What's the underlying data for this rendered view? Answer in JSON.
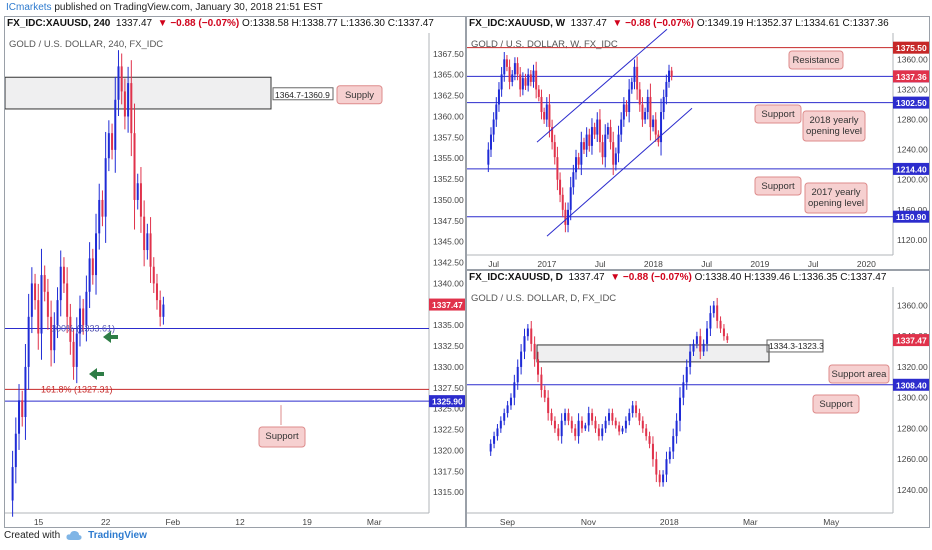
{
  "header": {
    "publisher": "ICmarkets",
    "text": " published on TradingView.com, January 30, 2018 21:51 EST"
  },
  "footer": {
    "created_with": "Created with",
    "brand": "TradingView"
  },
  "colors": {
    "up": "#1f2bd6",
    "down": "#e0324b",
    "blue_line": "#2c2ccd",
    "red_line": "#c62828",
    "callout_bg": "#f6d0d0",
    "callout_border": "#dd8b8b"
  },
  "panels": {
    "h4": {
      "title_symbol": "FX_IDC:XAUUSD, 240",
      "title_change": "▼ −0.88 (−0.07%)",
      "title_ohlc": "O:1338.58 H:1338.77 L:1336.30 C:1337.47",
      "title_price": "1337.47",
      "watermark": "GOLD / U.S. DOLLAR, 240, FX_IDC",
      "supply_box_label": "1364.7-1360.9",
      "supply_label": "Supply",
      "fib_label_1": "161.8% (1327.31)",
      "fib_label_2": "100% (1333.61)",
      "support_label": "Support"
    },
    "weekly": {
      "title_symbol": "FX_IDC:XAUUSD, W",
      "title_change": "▼ −0.88 (−0.07%)",
      "title_ohlc": "O:1349.19 H:1352.37 L:1334.61 C:1337.36",
      "watermark": "GOLD / U.S. DOLLAR, W, FX_IDC",
      "callouts": [
        "Resistance",
        "Support",
        "2018 yearly opening level",
        "Support",
        "2017 yearly opening level"
      ]
    },
    "daily": {
      "title_symbol": "FX_IDC:XAUUSD, D",
      "title_change": "▼ −0.88 (−0.07%)",
      "title_ohlc": "O:1338.40 H:1339.46 L:1336.35 C:1337.47",
      "watermark": "GOLD / U.S. DOLLAR, D, FX_IDC",
      "box_label": "1334.3-1323.3",
      "callouts": [
        "Support area",
        "Support"
      ]
    }
  },
  "chart_data": [
    {
      "type": "candlestick",
      "panel": "h4",
      "ylim": [
        1312.5,
        1370
      ],
      "y_ticks": [
        1315.0,
        1317.5,
        1320.0,
        1322.5,
        1325.0,
        1327.5,
        1330.0,
        1332.5,
        1335.0,
        1337.5,
        1340.0,
        1342.5,
        1345.0,
        1347.5,
        1350.0,
        1352.5,
        1355.0,
        1357.5,
        1360.0,
        1362.5,
        1365.0,
        1367.5
      ],
      "x_ticks": [
        "15",
        "22",
        "Feb",
        "12",
        "19",
        "Mar"
      ],
      "price_tags": [
        {
          "value": 1337.47,
          "label": "1337.47",
          "color": "#e0324b"
        },
        {
          "value": 1325.9,
          "label": "1325.90",
          "color": "#2c2ccd"
        }
      ],
      "levels": [
        {
          "value": 1325.9,
          "color": "#2c2ccd"
        },
        {
          "value": 1327.31,
          "color": "#c62828"
        },
        {
          "value": 1334.6,
          "color": "#2c2ccd"
        }
      ],
      "zone": [
        1360.9,
        1364.7
      ],
      "closes": [
        1318,
        1322,
        1326,
        1324,
        1330,
        1336,
        1340,
        1338,
        1334,
        1341,
        1339,
        1336,
        1332,
        1335,
        1338,
        1342,
        1340,
        1336,
        1333,
        1330,
        1334,
        1337,
        1335,
        1339,
        1343,
        1341,
        1346,
        1350,
        1348,
        1355,
        1358,
        1356,
        1362,
        1366,
        1363,
        1360,
        1364,
        1358,
        1350,
        1352,
        1348,
        1344,
        1346,
        1342,
        1340,
        1338,
        1336,
        1337.47
      ]
    },
    {
      "type": "candlestick",
      "panel": "weekly",
      "ylim": [
        1100,
        1395
      ],
      "y_ticks": [
        1120.0,
        1160.0,
        1200.0,
        1240.0,
        1280.0,
        1320.0,
        1360.0
      ],
      "x_ticks": [
        "Jul",
        "2017",
        "Jul",
        "2018",
        "Jul",
        "2019",
        "Jul",
        "2020"
      ],
      "price_tags": [
        {
          "value": 1375.5,
          "label": "1375.50",
          "color": "#c62828"
        },
        {
          "value": 1337.3,
          "label": "1337.30",
          "color": "#2c2ccd"
        },
        {
          "value": 1337.36,
          "label": "1337.36",
          "color": "#e0324b"
        },
        {
          "value": 1302.5,
          "label": "1302.50",
          "color": "#2c2ccd"
        },
        {
          "value": 1214.4,
          "label": "1214.40",
          "color": "#2c2ccd"
        },
        {
          "value": 1150.9,
          "label": "1150.90",
          "color": "#2c2ccd"
        }
      ],
      "levels": [
        {
          "value": 1375.5,
          "color": "#c62828"
        },
        {
          "value": 1337.3,
          "color": "#2c2ccd"
        },
        {
          "value": 1302.5,
          "color": "#2c2ccd"
        },
        {
          "value": 1214.4,
          "color": "#2c2ccd"
        },
        {
          "value": 1150.9,
          "color": "#2c2ccd"
        }
      ],
      "closes": [
        1240,
        1260,
        1280,
        1300,
        1320,
        1340,
        1360,
        1350,
        1330,
        1340,
        1355,
        1340,
        1320,
        1335,
        1325,
        1340,
        1330,
        1345,
        1320,
        1310,
        1290,
        1280,
        1300,
        1270,
        1250,
        1230,
        1200,
        1180,
        1160,
        1140,
        1160,
        1190,
        1210,
        1230,
        1220,
        1250,
        1240,
        1260,
        1245,
        1270,
        1260,
        1280,
        1250,
        1230,
        1260,
        1270,
        1250,
        1220,
        1235,
        1260,
        1280,
        1300,
        1290,
        1320,
        1330,
        1350,
        1320,
        1300,
        1280,
        1290,
        1310,
        1270,
        1280,
        1260,
        1250,
        1290,
        1310,
        1330,
        1345,
        1337
      ]
    },
    {
      "type": "candlestick",
      "panel": "daily",
      "ylim": [
        1225,
        1372
      ],
      "y_ticks": [
        1240.0,
        1260.0,
        1280.0,
        1300.0,
        1320.0,
        1340.0,
        1360.0
      ],
      "x_ticks": [
        "Sep",
        "Nov",
        "2018",
        "Mar",
        "May"
      ],
      "price_tags": [
        {
          "value": 1337.47,
          "label": "1337.47",
          "color": "#e0324b"
        },
        {
          "value": 1308.4,
          "label": "1308.40",
          "color": "#2c2ccd"
        }
      ],
      "levels": [
        {
          "value": 1308.4,
          "color": "#2c2ccd"
        }
      ],
      "zone": [
        1323.3,
        1334.3
      ],
      "closes": [
        1270,
        1275,
        1280,
        1285,
        1290,
        1295,
        1300,
        1310,
        1320,
        1330,
        1340,
        1345,
        1335,
        1325,
        1315,
        1305,
        1300,
        1290,
        1285,
        1280,
        1275,
        1285,
        1290,
        1285,
        1280,
        1275,
        1285,
        1280,
        1282,
        1290,
        1285,
        1280,
        1275,
        1280,
        1285,
        1290,
        1285,
        1282,
        1278,
        1280,
        1285,
        1290,
        1295,
        1290,
        1285,
        1280,
        1275,
        1270,
        1260,
        1250,
        1245,
        1250,
        1260,
        1265,
        1275,
        1285,
        1300,
        1310,
        1320,
        1330,
        1335,
        1340,
        1330,
        1335,
        1345,
        1355,
        1360,
        1350,
        1345,
        1340,
        1337.47
      ]
    }
  ]
}
